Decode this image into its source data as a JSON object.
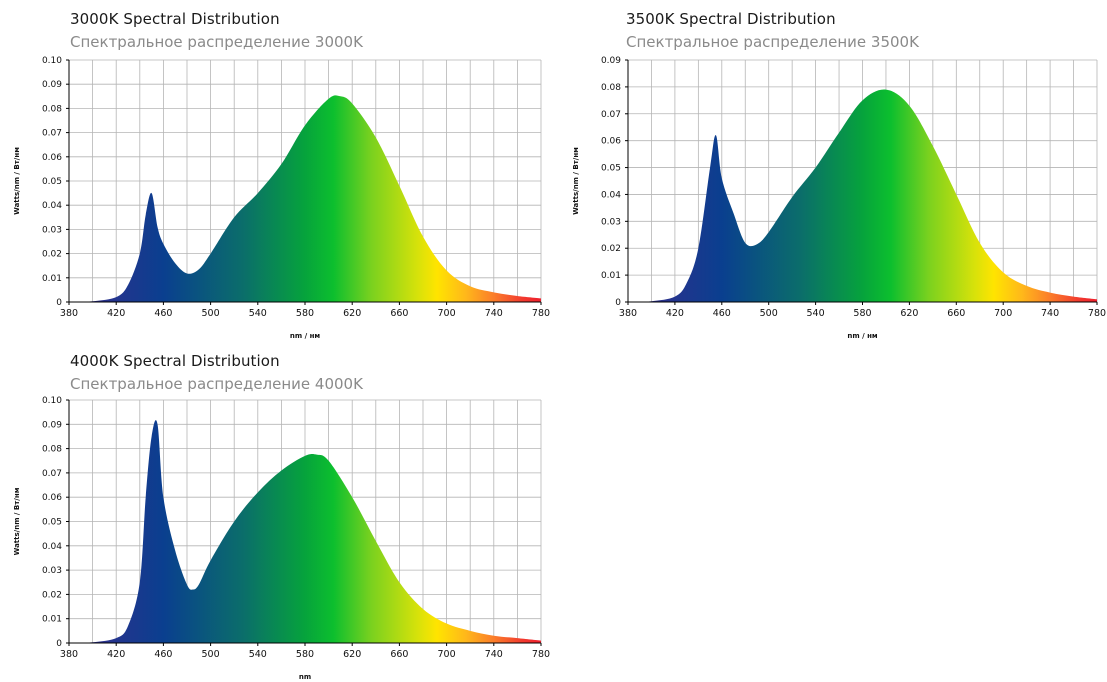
{
  "chart_data": [
    {
      "type": "area",
      "title": "3000K Spectral Distribution",
      "subtitle": "Спектральное распределение 3000K",
      "xlabel": "nm / нм",
      "ylabel": "Watts/nm / Вт/нм",
      "xlim": [
        380,
        780
      ],
      "ylim": [
        0,
        0.1
      ],
      "xticks": [
        "380",
        "420",
        "460",
        "500",
        "540",
        "580",
        "620",
        "660",
        "700",
        "740",
        "780"
      ],
      "yticks": [
        "0",
        "0.01",
        "0.02",
        "0.03",
        "0.04",
        "0.05",
        "0.06",
        "0.07",
        "0.08",
        "0.09",
        "0.10"
      ],
      "grid": true,
      "x": [
        380,
        400,
        420,
        430,
        440,
        445,
        450,
        455,
        460,
        470,
        480,
        490,
        500,
        520,
        540,
        560,
        580,
        600,
        610,
        620,
        640,
        660,
        680,
        700,
        720,
        740,
        760,
        780
      ],
      "values": [
        0.0,
        0.0003,
        0.002,
        0.007,
        0.02,
        0.036,
        0.045,
        0.031,
        0.024,
        0.016,
        0.0118,
        0.0135,
        0.02,
        0.035,
        0.045,
        0.057,
        0.073,
        0.084,
        0.085,
        0.082,
        0.068,
        0.048,
        0.027,
        0.013,
        0.0065,
        0.004,
        0.0025,
        0.0015
      ]
    },
    {
      "type": "area",
      "title": "3500K Spectral Distribution",
      "subtitle": "Спектральное распределение 3500K",
      "xlabel": "nm / нм",
      "ylabel": "Watts/nm / Вт/нм",
      "xlim": [
        380,
        780
      ],
      "ylim": [
        0,
        0.09
      ],
      "xticks": [
        "380",
        "420",
        "460",
        "500",
        "540",
        "580",
        "620",
        "660",
        "700",
        "740",
        "780"
      ],
      "yticks": [
        "0",
        "0.01",
        "0.02",
        "0.03",
        "0.04",
        "0.05",
        "0.06",
        "0.07",
        "0.08",
        "0.09"
      ],
      "grid": true,
      "x": [
        380,
        400,
        420,
        430,
        440,
        450,
        455,
        460,
        470,
        480,
        490,
        500,
        520,
        540,
        560,
        580,
        600,
        620,
        640,
        660,
        680,
        700,
        720,
        740,
        760,
        780
      ],
      "values": [
        0.0,
        0.0003,
        0.002,
        0.007,
        0.02,
        0.05,
        0.062,
        0.046,
        0.033,
        0.022,
        0.0215,
        0.026,
        0.039,
        0.05,
        0.063,
        0.075,
        0.079,
        0.073,
        0.058,
        0.04,
        0.022,
        0.011,
        0.006,
        0.0035,
        0.002,
        0.001
      ]
    },
    {
      "type": "area",
      "title": "4000K Spectral Distribution",
      "subtitle": "Спектральное распределение 4000K",
      "xlabel": "nm",
      "ylabel": "Watts/nm / Вт/нм",
      "xlim": [
        380,
        780
      ],
      "ylim": [
        0,
        0.1
      ],
      "xticks": [
        "380",
        "420",
        "460",
        "500",
        "540",
        "580",
        "620",
        "660",
        "700",
        "740",
        "780"
      ],
      "yticks": [
        "0",
        "0.01",
        "0.02",
        "0.03",
        "0.04",
        "0.05",
        "0.06",
        "0.07",
        "0.08",
        "0.09",
        "0.10"
      ],
      "grid": true,
      "x": [
        380,
        400,
        420,
        430,
        440,
        445,
        450,
        455,
        460,
        470,
        480,
        485,
        490,
        500,
        520,
        540,
        560,
        580,
        590,
        600,
        620,
        640,
        660,
        680,
        700,
        720,
        740,
        760,
        780
      ],
      "values": [
        0.0,
        0.0003,
        0.002,
        0.007,
        0.025,
        0.06,
        0.085,
        0.09,
        0.06,
        0.038,
        0.024,
        0.022,
        0.024,
        0.034,
        0.05,
        0.062,
        0.071,
        0.077,
        0.0775,
        0.075,
        0.06,
        0.042,
        0.025,
        0.014,
        0.008,
        0.005,
        0.003,
        0.002,
        0.001
      ]
    }
  ],
  "colors": {
    "grid": "#b5b5b5",
    "axis": "#000000",
    "spectrum_stops": [
      "#3b2a8c",
      "#0a3f8f",
      "#0b6e6a",
      "#06a33c",
      "#0cbf2e",
      "#79d11f",
      "#d8e20a",
      "#ffe400",
      "#ffb81a",
      "#fb7d2a",
      "#f23b2f",
      "#ee1f2d"
    ]
  }
}
